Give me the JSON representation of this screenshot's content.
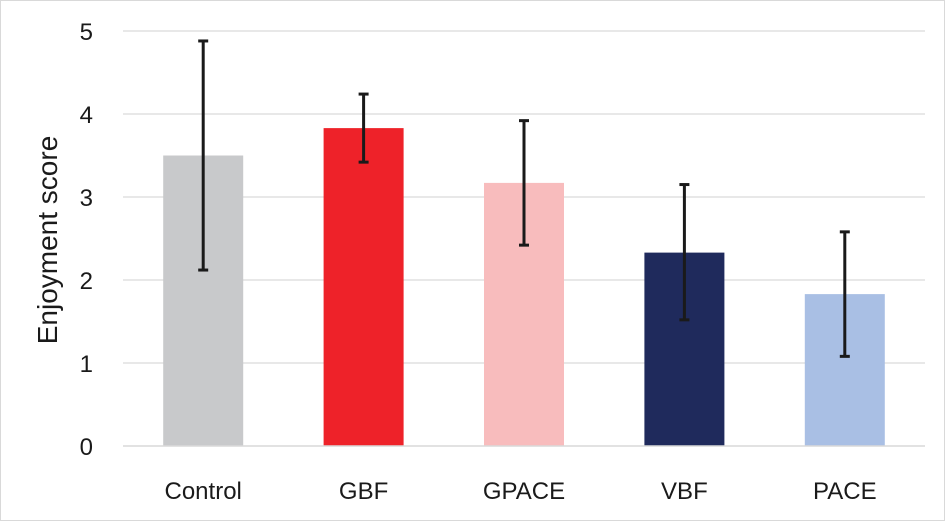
{
  "chart_data": {
    "type": "bar",
    "title": "",
    "xlabel": "",
    "ylabel": "Enjoyment score",
    "categories": [
      "Control",
      "GBF",
      "GPACE",
      "VBF",
      "PACE"
    ],
    "values": [
      3.5,
      3.83,
      3.17,
      2.33,
      1.83
    ],
    "error_low": [
      2.12,
      3.42,
      2.42,
      1.52,
      1.08
    ],
    "error_high": [
      4.88,
      4.24,
      3.92,
      3.15,
      2.58
    ],
    "colors": [
      "#c8c9cb",
      "#ee2229",
      "#f8bcbd",
      "#1f2a5c",
      "#a9bfe4"
    ],
    "ylim": [
      0,
      5
    ],
    "yticks": [
      "0",
      "1",
      "2",
      "3",
      "4",
      "5"
    ],
    "grid": true,
    "legend": "none"
  }
}
